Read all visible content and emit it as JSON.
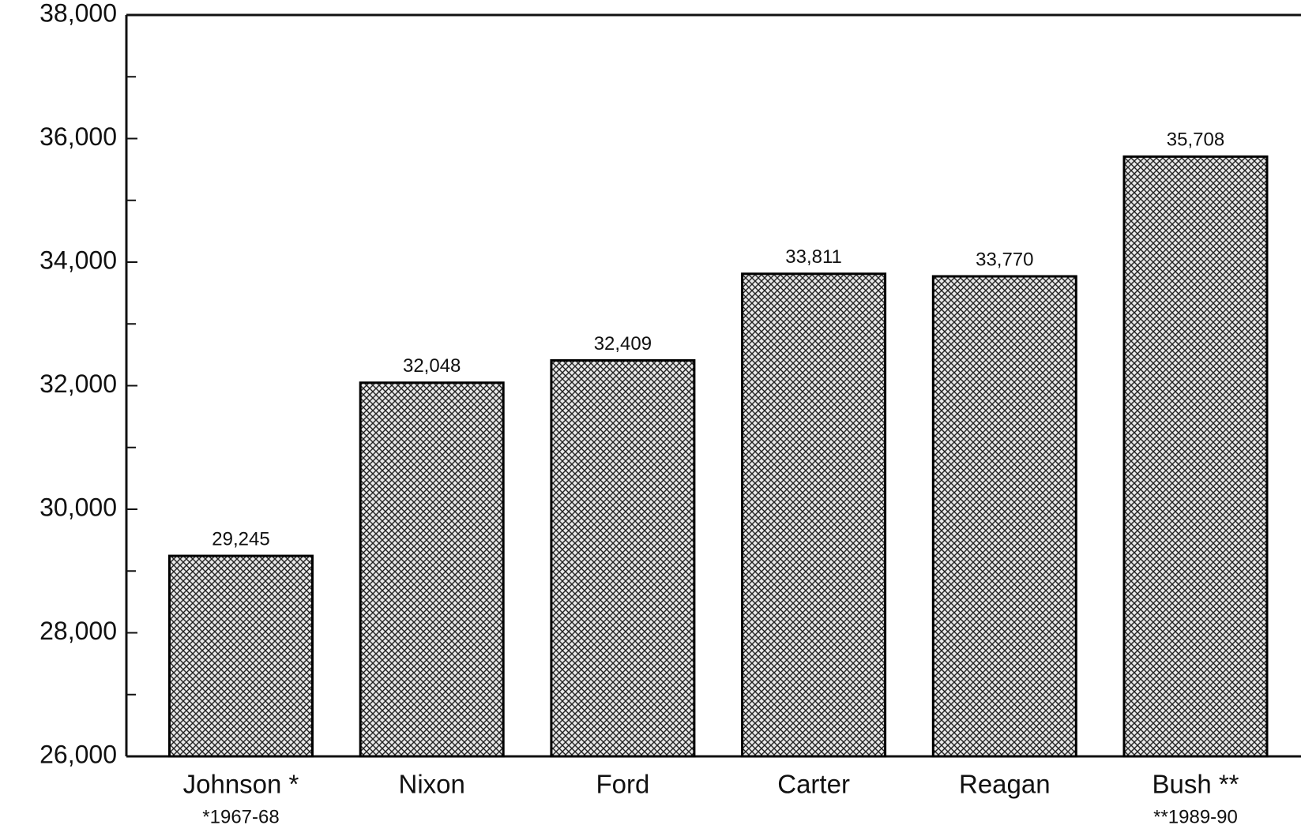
{
  "chart_data": {
    "type": "bar",
    "categories": [
      "Johnson *",
      "Nixon",
      "Ford",
      "Carter",
      "Reagan",
      "Bush **"
    ],
    "sublabels": [
      "*1967-68",
      null,
      null,
      null,
      null,
      "**1989-90"
    ],
    "values": [
      29245,
      32048,
      32409,
      33811,
      33770,
      35708
    ],
    "value_labels": [
      "29,245",
      "32,048",
      "32,409",
      "33,811",
      "33,770",
      "35,708"
    ],
    "color": "#000000",
    "pattern": "crosshatch",
    "ylim": [
      26000,
      38000
    ],
    "yticks": [
      {
        "value": 26000,
        "label": "26,000"
      },
      {
        "value": 28000,
        "label": "28,000"
      },
      {
        "value": 30000,
        "label": "30,000"
      },
      {
        "value": 32000,
        "label": "32,000"
      },
      {
        "value": 34000,
        "label": "34,000"
      },
      {
        "value": 36000,
        "label": "36,000"
      },
      {
        "value": 38000,
        "label": "38,000"
      }
    ],
    "minor_yticks": [
      27000,
      29000,
      31000,
      33000,
      35000,
      37000
    ],
    "grid": false
  }
}
